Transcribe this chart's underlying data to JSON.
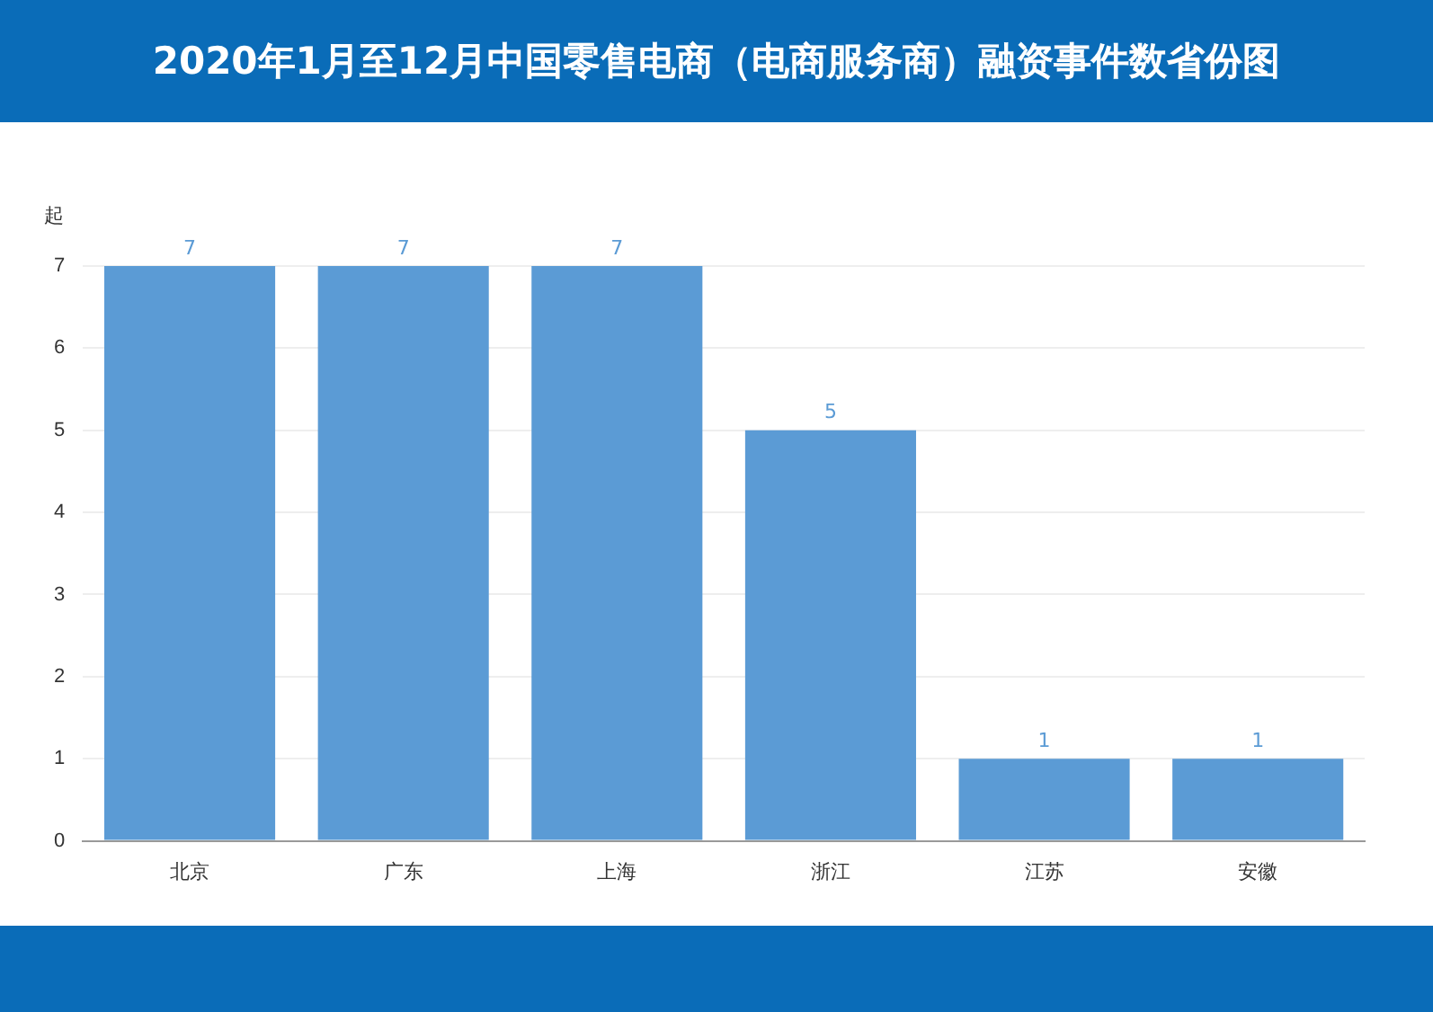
{
  "chart_data": {
    "type": "bar",
    "title": "2020年1月至12月中国零售电商（电商服务商）融资事件数省份图",
    "ylabel": "起",
    "categories": [
      "北京",
      "广东",
      "上海",
      "浙江",
      "江苏",
      "安徽"
    ],
    "values": [
      7,
      7,
      7,
      5,
      1,
      1
    ],
    "color": "#5b9bd5",
    "ylim": [
      0,
      7
    ],
    "yticks": [
      0,
      1,
      2,
      3,
      4,
      5,
      6,
      7
    ],
    "grid": "y",
    "data_labels": true
  }
}
